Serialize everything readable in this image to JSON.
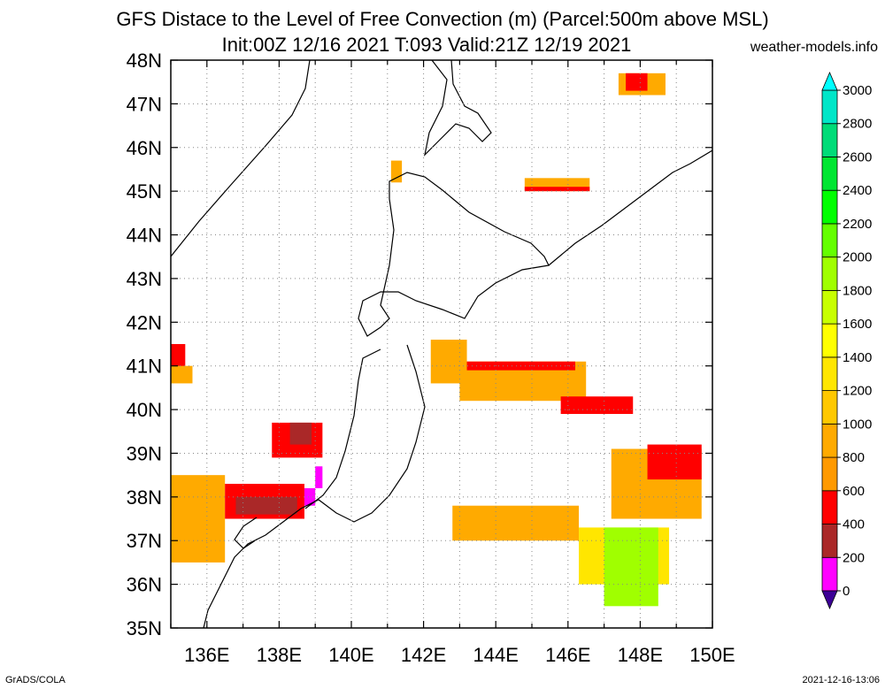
{
  "header": {
    "title_line1": "GFS Distace to the Level of Free Convection (m) (Parcel:500m above MSL)",
    "title_line2": "Init:00Z 12/16 2021 T:093 Valid:21Z 12/19 2021",
    "site": "weather-models.info"
  },
  "footer": {
    "left": "GrADS/COLA",
    "right": "2021-12-16-13:06"
  },
  "map": {
    "lon_range": [
      135,
      150
    ],
    "lat_range": [
      35,
      48
    ],
    "grid": true,
    "x_ticks": [
      "136E",
      "138E",
      "140E",
      "142E",
      "144E",
      "146E",
      "148E",
      "150E"
    ],
    "y_ticks": [
      "35N",
      "36N",
      "37N",
      "38N",
      "39N",
      "40N",
      "41N",
      "42N",
      "43N",
      "44N",
      "45N",
      "46N",
      "47N",
      "48N"
    ]
  },
  "colorbar": {
    "labels": [
      "0",
      "200",
      "400",
      "600",
      "800",
      "1000",
      "1200",
      "1400",
      "1600",
      "1800",
      "2000",
      "2200",
      "2400",
      "2600",
      "2800",
      "3000"
    ],
    "colors": [
      "#8a00f0",
      "#ff00ff",
      "#aa2828",
      "#ff0000",
      "#ff9900",
      "#ffaa00",
      "#ffc800",
      "#ffe600",
      "#ffff00",
      "#c8ff00",
      "#a0ff00",
      "#64ff00",
      "#00ff00",
      "#00e632",
      "#00dc78",
      "#00e6c8",
      "#00fafa"
    ],
    "bottom_color": "#3c0096",
    "top_color": "#00ffff"
  },
  "regions": [
    {
      "name": "off-rebun-coast",
      "color": "#ffaa00",
      "cells": [
        [
          141.1,
          45.2,
          0.3,
          0.5
        ]
      ]
    },
    {
      "name": "japan-sea-north",
      "color": "#ff0000",
      "cells": [
        [
          135,
          40.8,
          0.4,
          0.7
        ]
      ]
    },
    {
      "name": "japan-sea-north-orange",
      "color": "#ffaa00",
      "cells": [
        [
          135,
          40.6,
          0.6,
          0.4
        ]
      ]
    },
    {
      "name": "japan-sea-mid-red",
      "color": "#ff0000",
      "cells": [
        [
          137.8,
          38.9,
          1.4,
          0.8
        ]
      ]
    },
    {
      "name": "japan-sea-mid-brown",
      "color": "#aa2828",
      "cells": [
        [
          138.3,
          39.2,
          0.6,
          0.5
        ]
      ]
    },
    {
      "name": "noto-sado-orange",
      "color": "#ffaa00",
      "cells": [
        [
          135,
          36.5,
          1.5,
          2
        ]
      ]
    },
    {
      "name": "sado-red",
      "color": "#ff0000",
      "cells": [
        [
          136.5,
          37.5,
          2.2,
          0.8
        ]
      ]
    },
    {
      "name": "sado-brown",
      "color": "#aa2828",
      "cells": [
        [
          136.8,
          37.6,
          1.7,
          0.4
        ]
      ]
    },
    {
      "name": "magenta-spot",
      "color": "#ff00ff",
      "cells": [
        [
          138.7,
          37.8,
          0.3,
          0.4
        ],
        [
          139.0,
          38.2,
          0.2,
          0.5
        ]
      ]
    },
    {
      "name": "pacific-north-orange",
      "color": "#ffaa00",
      "cells": [
        [
          142.2,
          40.6,
          1.0,
          1.0
        ],
        [
          143.0,
          40.2,
          3.5,
          0.9
        ]
      ]
    },
    {
      "name": "pacific-north-red",
      "color": "#ff0000",
      "cells": [
        [
          143.2,
          40.9,
          3.0,
          0.2
        ],
        [
          145.8,
          39.9,
          2.0,
          0.4
        ]
      ]
    },
    {
      "name": "pacific-east-orange",
      "color": "#ffaa00",
      "cells": [
        [
          147.2,
          37.5,
          2.5,
          1.6
        ]
      ]
    },
    {
      "name": "pacific-east-red",
      "color": "#ff0000",
      "cells": [
        [
          148.2,
          38.4,
          1.5,
          0.8
        ]
      ]
    },
    {
      "name": "pacific-south-orange",
      "color": "#ffaa00",
      "cells": [
        [
          142.8,
          37.0,
          3.5,
          0.8
        ]
      ]
    },
    {
      "name": "pacific-south-yellow",
      "color": "#ffe600",
      "cells": [
        [
          146.3,
          36.0,
          2.5,
          1.3
        ]
      ]
    },
    {
      "name": "pacific-south-green",
      "color": "#a0ff00",
      "cells": [
        [
          147.0,
          35.5,
          1.5,
          1.8
        ]
      ]
    },
    {
      "name": "kurile-orange",
      "color": "#ffaa00",
      "cells": [
        [
          144.8,
          45.0,
          1.8,
          0.3
        ]
      ]
    },
    {
      "name": "kurile-red",
      "color": "#ff0000",
      "cells": [
        [
          144.8,
          45.0,
          1.8,
          0.1
        ]
      ]
    },
    {
      "name": "sakhalin-east-orange",
      "color": "#ffaa00",
      "cells": [
        [
          147.4,
          47.2,
          1.3,
          0.5
        ]
      ]
    },
    {
      "name": "sakhalin-east-red",
      "color": "#ff0000",
      "cells": [
        [
          147.6,
          47.3,
          0.6,
          0.4
        ]
      ]
    }
  ]
}
